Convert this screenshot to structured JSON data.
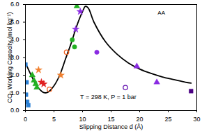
{
  "chart_data": {
    "type": "scatter",
    "x_label": "Slipping Distance d (Å)",
    "y_label": "CO₂ Working Capacity (mol kg⁻¹)",
    "xlim": [
      0,
      30
    ],
    "xticks": [
      0,
      5,
      10,
      15,
      20,
      25,
      30
    ],
    "ylim": [
      0,
      6
    ],
    "yticks": [
      0,
      1,
      2,
      3,
      4,
      5,
      6
    ],
    "annotations": [
      "T = 298 K, P = 1 bar",
      "AA"
    ],
    "series": [
      {
        "type": "line",
        "color": "#000000",
        "line_style": "solid",
        "x": [
          0,
          1,
          2,
          3,
          3.5,
          4,
          5,
          6,
          7,
          8,
          9,
          10,
          10.5,
          11,
          12,
          14,
          16,
          18,
          20,
          22,
          24,
          26,
          28,
          29
        ],
        "values": [
          2.7,
          2.0,
          1.4,
          1.05,
          1.0,
          1.05,
          1.4,
          2.0,
          2.9,
          3.8,
          4.8,
          5.6,
          5.9,
          5.8,
          5.0,
          3.9,
          3.2,
          2.7,
          2.35,
          2.1,
          1.9,
          1.75,
          1.6,
          1.55
        ]
      },
      {
        "type": "scatter",
        "color": "#2a7fd4",
        "marker": "square",
        "x": [
          0,
          0.2,
          0.1,
          0.3,
          0.5
        ],
        "values": [
          2.6,
          1.6,
          0.9,
          0.5,
          0.3
        ]
      },
      {
        "type": "scatter",
        "color": "#22b022",
        "marker": "triangle",
        "x": [
          1.2,
          1.5,
          1.8,
          2.0,
          9.0
        ],
        "values": [
          2.0,
          1.7,
          1.5,
          1.3,
          5.9
        ]
      },
      {
        "type": "scatter",
        "color": "#e02020",
        "marker": "star",
        "x": [
          2.8,
          3.2
        ],
        "values": [
          1.6,
          1.5
        ]
      },
      {
        "type": "scatter",
        "color": "#f08030",
        "marker": "star",
        "x": [
          2.3,
          6.2
        ],
        "values": [
          2.3,
          2.0
        ]
      },
      {
        "type": "scatter",
        "color": "#f06020",
        "marker": "circle-open",
        "x": [
          4.2,
          7.2
        ],
        "values": [
          1.2,
          3.3
        ]
      },
      {
        "type": "scatter",
        "color": "#22b022",
        "marker": "circle",
        "x": [
          8.2,
          8.6
        ],
        "values": [
          4.0,
          3.6
        ]
      },
      {
        "type": "scatter",
        "color": "#8a2be2",
        "marker": "star",
        "x": [
          9.6,
          8.8
        ],
        "values": [
          5.6,
          4.6
        ]
      },
      {
        "type": "scatter",
        "color": "#8a2be2",
        "marker": "circle",
        "x": [
          12.5
        ],
        "values": [
          3.3
        ]
      },
      {
        "type": "scatter",
        "color": "#6a1bb2",
        "marker": "circle-open",
        "x": [
          17.5
        ],
        "values": [
          1.3
        ]
      },
      {
        "type": "scatter",
        "color": "#8a2be2",
        "marker": "triangle",
        "x": [
          19.5,
          23
        ],
        "values": [
          2.5,
          1.6
        ]
      },
      {
        "type": "scatter",
        "color": "#4b0082",
        "marker": "square",
        "x": [
          29
        ],
        "values": [
          1.1
        ]
      }
    ]
  }
}
